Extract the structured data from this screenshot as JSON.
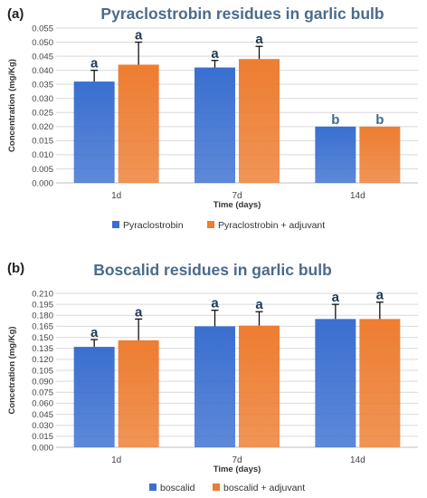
{
  "chart_data": [
    {
      "type": "bar",
      "panel_label": "(a)",
      "title": "Pyraclostrobin residues in garlic bulb",
      "xlabel": "Time (days)",
      "ylabel": "Concentration (mg/Kg)",
      "categories": [
        "1d",
        "7d",
        "14d"
      ],
      "ylim": [
        0,
        0.055
      ],
      "ytick_step": 0.005,
      "ytick_decimals": 3,
      "series": [
        {
          "name": "Pyraclostrobin",
          "color": "#3a6fd0",
          "values": [
            0.036,
            0.041,
            0.02
          ],
          "errors": [
            0.004,
            0.0025,
            0.0
          ],
          "letters": [
            "a",
            "a",
            "b"
          ]
        },
        {
          "name": "Pyraclostrobin + adjuvant",
          "color": "#ed7d31",
          "values": [
            0.042,
            0.044,
            0.02
          ],
          "errors": [
            0.008,
            0.0045,
            0.0
          ],
          "letters": [
            "a",
            "a",
            "b"
          ]
        }
      ],
      "legend_position": "bottom",
      "grid": true
    },
    {
      "type": "bar",
      "panel_label": "(b)",
      "title": "Boscalid residues in garlic bulb",
      "xlabel": "Time (days)",
      "ylabel": "Concetration (mg/Kg)",
      "categories": [
        "1d",
        "7d",
        "14d"
      ],
      "ylim": [
        0,
        0.21
      ],
      "ytick_step": 0.015,
      "ytick_decimals": 3,
      "series": [
        {
          "name": "boscalid",
          "color": "#3a6fd0",
          "values": [
            0.137,
            0.165,
            0.175
          ],
          "errors": [
            0.01,
            0.022,
            0.02
          ],
          "letters": [
            "a",
            "a",
            "a"
          ]
        },
        {
          "name": "boscalid + adjuvant",
          "color": "#ed7d31",
          "values": [
            0.146,
            0.166,
            0.175
          ],
          "errors": [
            0.029,
            0.019,
            0.023
          ],
          "letters": [
            "a",
            "a",
            "a"
          ]
        }
      ],
      "legend_position": "bottom",
      "grid": true
    }
  ]
}
